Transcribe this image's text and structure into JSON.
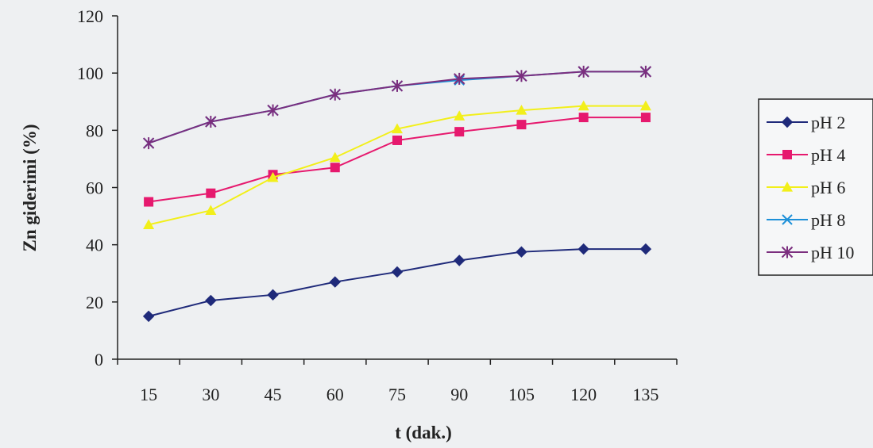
{
  "chart_data": {
    "type": "line",
    "title": "",
    "xlabel": "t (dak.)",
    "ylabel": "Zn giderimi (%)",
    "categories": [
      "15",
      "30",
      "45",
      "60",
      "75",
      "90",
      "105",
      "120",
      "135"
    ],
    "ylim": [
      0,
      120
    ],
    "yticks": [
      "0",
      "20",
      "40",
      "60",
      "80",
      "100",
      "120"
    ],
    "grid": false,
    "legend_position": "right",
    "series": [
      {
        "name": "pH  2",
        "color": "#1f2a7a",
        "marker": "diamond",
        "values": [
          15,
          20.5,
          22.5,
          27,
          30.5,
          34.5,
          37.5,
          38.5,
          38.5
        ]
      },
      {
        "name": "pH 4",
        "color": "#e6196e",
        "marker": "square",
        "values": [
          55,
          58,
          64.5,
          67,
          76.5,
          79.5,
          82,
          84.5,
          84.5
        ]
      },
      {
        "name": "pH 6",
        "color": "#f2ef1a",
        "marker": "triangle",
        "values": [
          47,
          52,
          63.5,
          70.5,
          80.5,
          85,
          87,
          88.5,
          88.5
        ]
      },
      {
        "name": "pH 8",
        "color": "#1d90d8",
        "marker": "x",
        "values": [
          75.5,
          83,
          87,
          92.5,
          95.5,
          97.5,
          99,
          100.5,
          100.5
        ]
      },
      {
        "name": "pH 10",
        "color": "#7b2e7e",
        "marker": "star",
        "values": [
          75.5,
          83,
          87,
          92.5,
          95.5,
          98,
          99,
          100.5,
          100.5
        ]
      }
    ]
  }
}
